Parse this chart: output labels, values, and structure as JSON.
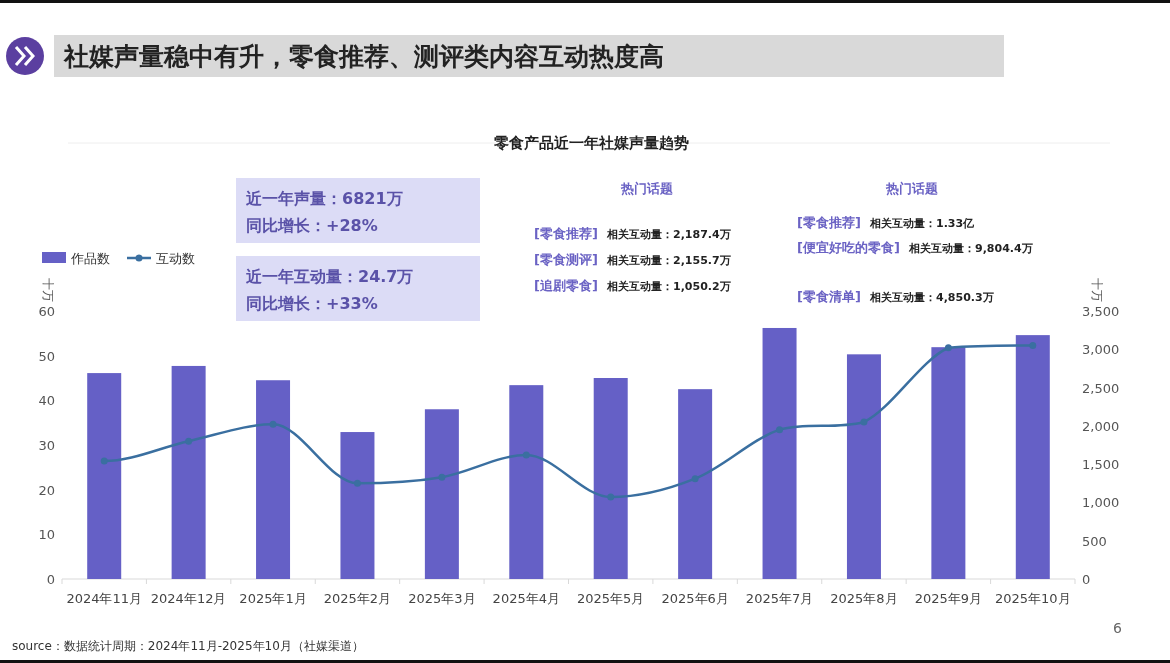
{
  "chart_data": {
    "type": "bar",
    "title": "社媒声量稳中有升，零食推荐、测评类内容互动热度高",
    "subtitle": "零食产品近一年社媒声量趋势",
    "ylabel": "十万",
    "y2label": "十万",
    "categories": [
      "2024年11月",
      "2024年12月",
      "2025年1月",
      "2025年2月",
      "2025年3月",
      "2025年4月",
      "2025年5月",
      "2025年6月",
      "2025年7月",
      "2025年8月",
      "2025年9月",
      "2025年10月"
    ],
    "series": [
      {
        "name": "作品数",
        "color": "#6560c6",
        "values": [
          46.1,
          47.7,
          44.5,
          32.9,
          38.0,
          43.4,
          45.0,
          42.5,
          56.2,
          50.3,
          51.9,
          54.6
        ]
      },
      {
        "name": "互动数",
        "type": "line",
        "axis": "y2",
        "color": "#3a6fa0",
        "values": [
          1540,
          1800,
          2020,
          1250,
          1330,
          1620,
          1070,
          1310,
          1950,
          2050,
          3020,
          3050
        ]
      }
    ],
    "ylim": [
      0,
      60
    ],
    "yticks": [
      0,
      10,
      20,
      30,
      40,
      50,
      60
    ],
    "y2lim": [
      0,
      3500
    ],
    "y2ticks": [
      0,
      500,
      {
        "value": 1000,
        "label": "1,000"
      },
      {
        "value": 1500,
        "label": "1,500"
      },
      {
        "value": 2000,
        "label": "2,000"
      },
      {
        "value": 2500,
        "label": "2,500"
      },
      {
        "value": 3000,
        "label": "3,000"
      },
      {
        "value": 3500,
        "label": "3,500"
      }
    ],
    "legend": "top left",
    "grid": false,
    "marker": "circle",
    "annotations": [
      "近一年声量：6821万",
      "同比增长：+28%",
      "近一年互动量：24.7万",
      "同比增长：+33%",
      "热门话题",
      "[零食推荐]",
      "相关互动量：2,187.4万",
      "[零食测评]",
      "相关互动量：2,155.7万",
      "[追剧零食]",
      "相关互动量：1,050.2万",
      "热门话题",
      "[零食推荐]",
      "相关互动量：1.33亿",
      "[便宜好吃的零食]",
      "相关互动量：9,804.4万",
      "[零食清单]",
      "相关互动量：4,850.3万",
      "source：数据统计周期：2024年11月-2025年10月（社媒渠道）",
      "6"
    ]
  }
}
